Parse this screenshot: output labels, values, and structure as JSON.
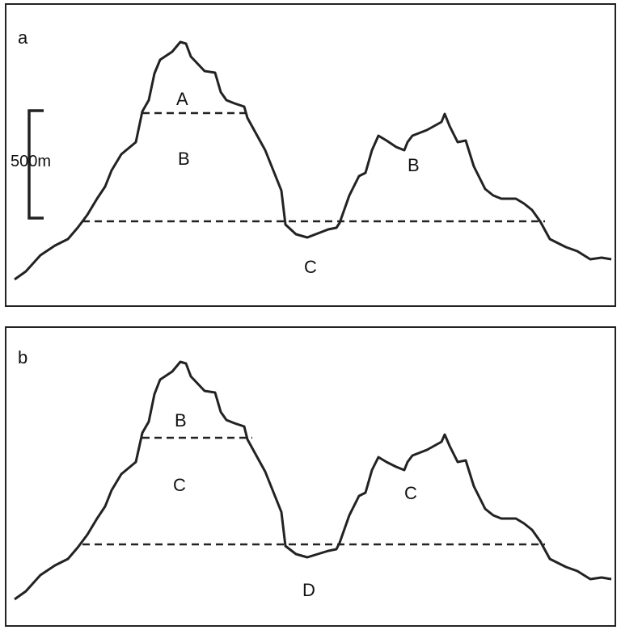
{
  "panels": [
    {
      "id": "a",
      "label": "a",
      "scale_bar": "500m",
      "zones": {
        "summit": "A",
        "upper_slope": "B",
        "second_peak": "B",
        "valley": "C"
      }
    },
    {
      "id": "b",
      "label": "b",
      "zones": {
        "summit": "B",
        "upper_slope": "C",
        "second_peak": "C",
        "valley": "D"
      }
    }
  ]
}
